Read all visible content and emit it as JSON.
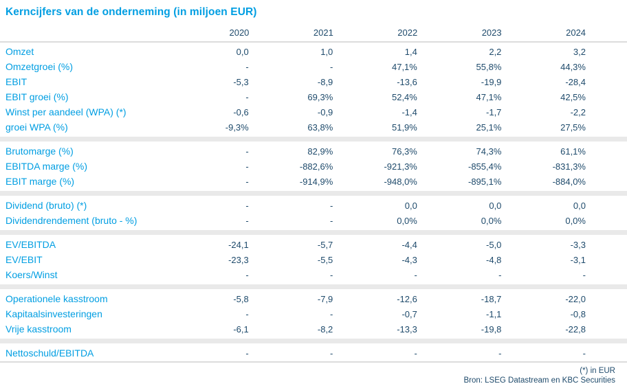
{
  "title": "Kerncijfers van de onderneming (in miljoen EUR)",
  "columns": [
    "2020",
    "2021",
    "2022",
    "2023",
    "2024"
  ],
  "sections": [
    {
      "rows": [
        {
          "label": "Omzet",
          "values": [
            "0,0",
            "1,0",
            "1,4",
            "2,2",
            "3,2"
          ]
        },
        {
          "label": "Omzetgroei (%)",
          "values": [
            "-",
            "-",
            "47,1%",
            "55,8%",
            "44,3%"
          ]
        },
        {
          "label": "EBIT",
          "values": [
            "-5,3",
            "-8,9",
            "-13,6",
            "-19,9",
            "-28,4"
          ]
        },
        {
          "label": "EBIT groei (%)",
          "values": [
            "-",
            "69,3%",
            "52,4%",
            "47,1%",
            "42,5%"
          ]
        },
        {
          "label": "Winst per aandeel (WPA) (*)",
          "values": [
            "-0,6",
            "-0,9",
            "-1,4",
            "-1,7",
            "-2,2"
          ]
        },
        {
          "label": "groei WPA (%)",
          "values": [
            "-9,3%",
            "63,8%",
            "51,9%",
            "25,1%",
            "27,5%"
          ]
        }
      ]
    },
    {
      "rows": [
        {
          "label": "Brutomarge (%)",
          "values": [
            "-",
            "82,9%",
            "76,3%",
            "74,3%",
            "61,1%"
          ]
        },
        {
          "label": "EBITDA marge (%)",
          "values": [
            "-",
            "-882,6%",
            "-921,3%",
            "-855,4%",
            "-831,3%"
          ]
        },
        {
          "label": "EBIT marge (%)",
          "values": [
            "-",
            "-914,9%",
            "-948,0%",
            "-895,1%",
            "-884,0%"
          ]
        }
      ]
    },
    {
      "rows": [
        {
          "label": "Dividend (bruto) (*)",
          "values": [
            "-",
            "-",
            "0,0",
            "0,0",
            "0,0"
          ]
        },
        {
          "label": "Dividendrendement (bruto - %)",
          "values": [
            "-",
            "-",
            "0,0%",
            "0,0%",
            "0,0%"
          ]
        }
      ]
    },
    {
      "rows": [
        {
          "label": "EV/EBITDA",
          "values": [
            "-24,1",
            "-5,7",
            "-4,4",
            "-5,0",
            "-3,3"
          ]
        },
        {
          "label": "EV/EBIT",
          "values": [
            "-23,3",
            "-5,5",
            "-4,3",
            "-4,8",
            "-3,1"
          ]
        },
        {
          "label": "Koers/Winst",
          "values": [
            "-",
            "-",
            "-",
            "-",
            "-"
          ]
        }
      ]
    },
    {
      "rows": [
        {
          "label": "Operationele kasstroom",
          "values": [
            "-5,8",
            "-7,9",
            "-12,6",
            "-18,7",
            "-22,0"
          ]
        },
        {
          "label": "Kapitaalsinvesteringen",
          "values": [
            "-",
            "-",
            "-0,7",
            "-1,1",
            "-0,8"
          ]
        },
        {
          "label": "Vrije kasstroom",
          "values": [
            "-6,1",
            "-8,2",
            "-13,3",
            "-19,8",
            "-22,8"
          ]
        }
      ]
    },
    {
      "rows": [
        {
          "label": "Nettoschuld/EBITDA",
          "values": [
            "-",
            "-",
            "-",
            "-",
            "-"
          ]
        }
      ]
    }
  ],
  "footnotes": [
    "(*) in EUR",
    "Bron: LSEG Datastream en KBC Securities"
  ],
  "colors": {
    "accent": "#009EE2",
    "value_text": "#1E4A6B",
    "divider_band": "#E9E9E9",
    "divider_line": "#DCDCDC"
  }
}
